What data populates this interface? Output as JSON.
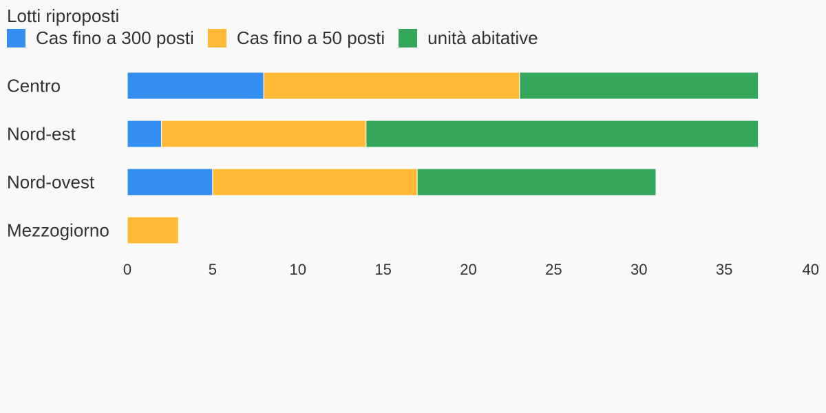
{
  "chart_data": {
    "type": "bar",
    "orientation": "horizontal",
    "stacked": true,
    "title": "Lotti riproposti",
    "categories": [
      "Centro",
      "Nord-est",
      "Nord-ovest",
      "Mezzogiorno"
    ],
    "series": [
      {
        "name": "Cas fino a 300 posti",
        "color": "#348ef0",
        "values": [
          8,
          2,
          5,
          0
        ]
      },
      {
        "name": "Cas fino a 50 posti",
        "color": "#ffb937",
        "values": [
          15,
          12,
          12,
          3
        ]
      },
      {
        "name": "unità abitative",
        "color": "#34a75b",
        "values": [
          14,
          23,
          14,
          0
        ]
      }
    ],
    "xlim": [
      0,
      40
    ],
    "xticks": [
      0,
      5,
      10,
      15,
      20,
      25,
      30,
      35,
      40
    ],
    "xlabel": "",
    "ylabel": "",
    "grid": false,
    "legend_position": "top-left"
  }
}
